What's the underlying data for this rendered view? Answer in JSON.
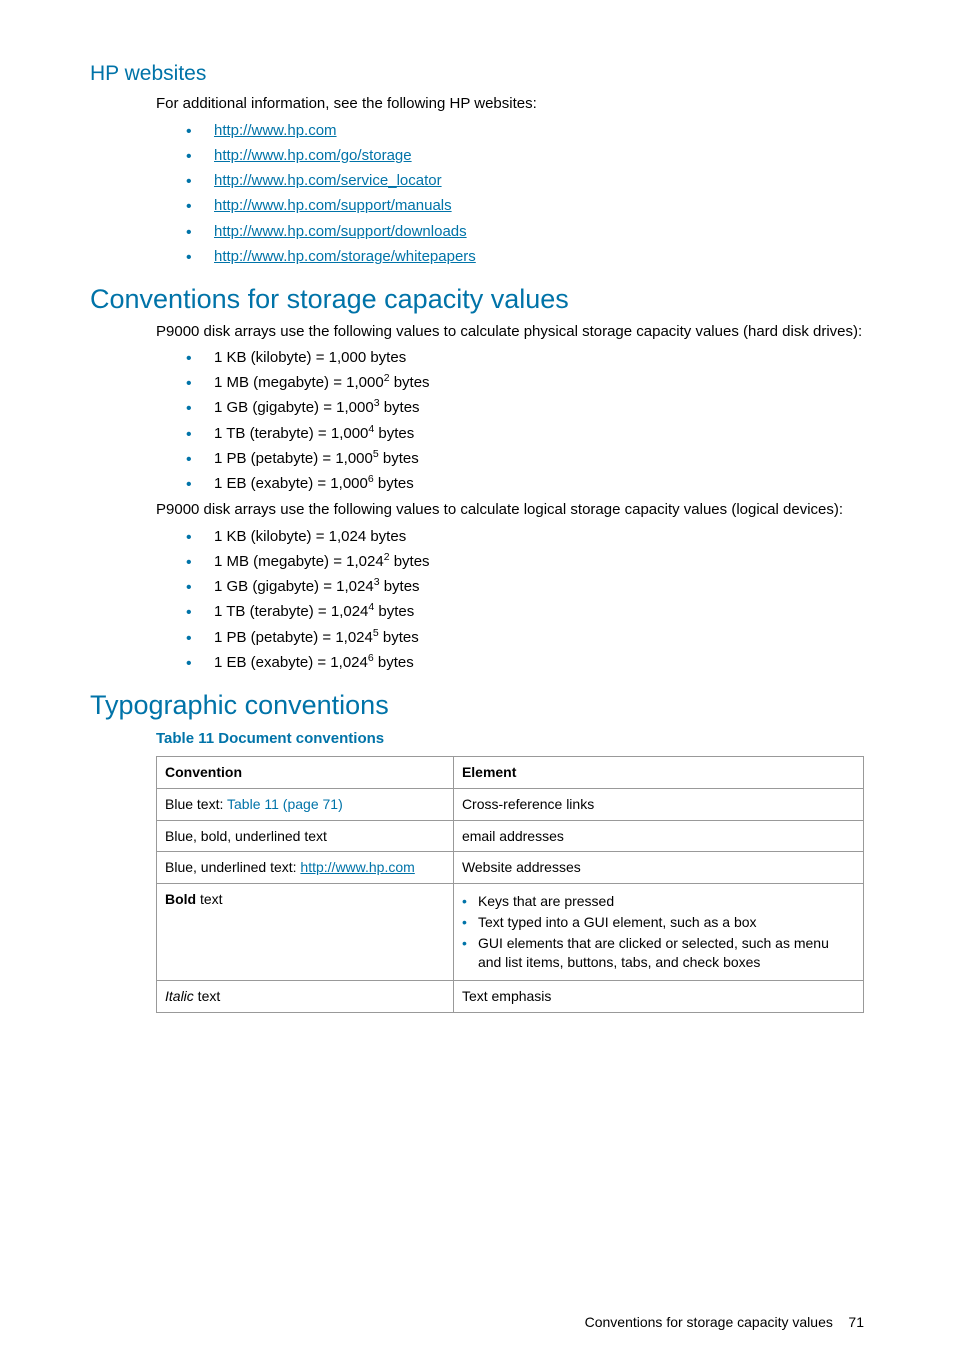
{
  "colors": {
    "accent": "#0073a8",
    "text": "#000000",
    "border": "#999999",
    "background": "#ffffff"
  },
  "hp_websites": {
    "heading": "HP websites",
    "intro": "For additional information, see the following HP websites:",
    "links": [
      "http://www.hp.com",
      "http://www.hp.com/go/storage",
      "http://www.hp.com/service_locator",
      "http://www.hp.com/support/manuals",
      "http://www.hp.com/support/downloads",
      "http://www.hp.com/storage/whitepapers"
    ]
  },
  "conventions_capacity": {
    "heading": "Conventions for storage capacity values",
    "intro1": "P9000 disk arrays use the following values to calculate physical storage capacity values (hard disk drives):",
    "physical": [
      {
        "pre": "1 KB (kilobyte) = 1,000 bytes",
        "exp": ""
      },
      {
        "pre": "1 MB (megabyte) = 1,000",
        "exp": "2",
        "post": " bytes"
      },
      {
        "pre": "1 GB (gigabyte) = 1,000",
        "exp": "3",
        "post": " bytes"
      },
      {
        "pre": "1 TB (terabyte) = 1,000",
        "exp": "4",
        "post": " bytes"
      },
      {
        "pre": "1 PB (petabyte) = 1,000",
        "exp": "5",
        "post": " bytes"
      },
      {
        "pre": "1 EB (exabyte) = 1,000",
        "exp": "6",
        "post": " bytes"
      }
    ],
    "intro2": "P9000 disk arrays use the following values to calculate logical storage capacity values (logical devices):",
    "logical": [
      {
        "pre": "1 KB (kilobyte) = 1,024 bytes",
        "exp": ""
      },
      {
        "pre": "1 MB (megabyte) = 1,024",
        "exp": "2",
        "post": " bytes"
      },
      {
        "pre": "1 GB (gigabyte) = 1,024",
        "exp": "3",
        "post": " bytes"
      },
      {
        "pre": "1 TB (terabyte) = 1,024",
        "exp": "4",
        "post": " bytes"
      },
      {
        "pre": "1 PB (petabyte) = 1,024",
        "exp": "5",
        "post": " bytes"
      },
      {
        "pre": "1 EB (exabyte) = 1,024",
        "exp": "6",
        "post": " bytes"
      }
    ]
  },
  "typographic": {
    "heading": "Typographic conventions",
    "table_title": "Table 11 Document conventions",
    "columns": [
      "Convention",
      "Element"
    ],
    "rows": [
      {
        "conv_pre": "Blue text: ",
        "conv_link": "Table 11 (page 71)",
        "conv_link_underline": false,
        "elem": "Cross-reference links"
      },
      {
        "conv_plain": "Blue, bold, underlined text",
        "elem": "email addresses"
      },
      {
        "conv_pre": "Blue, underlined text: ",
        "conv_link": "http://www.hp.com",
        "conv_link_underline": true,
        "elem": "Website addresses"
      },
      {
        "conv_bold": "Bold",
        "conv_after": " text",
        "elem_list": [
          "Keys that are pressed",
          "Text typed into a GUI element, such as a box",
          "GUI elements that are clicked or selected, such as menu and list items, buttons, tabs, and check boxes"
        ]
      },
      {
        "conv_italic": "Italic",
        "conv_after": "  text",
        "elem": "Text emphasis"
      }
    ]
  },
  "footer": {
    "text": "Conventions for storage capacity values",
    "page": "71"
  }
}
